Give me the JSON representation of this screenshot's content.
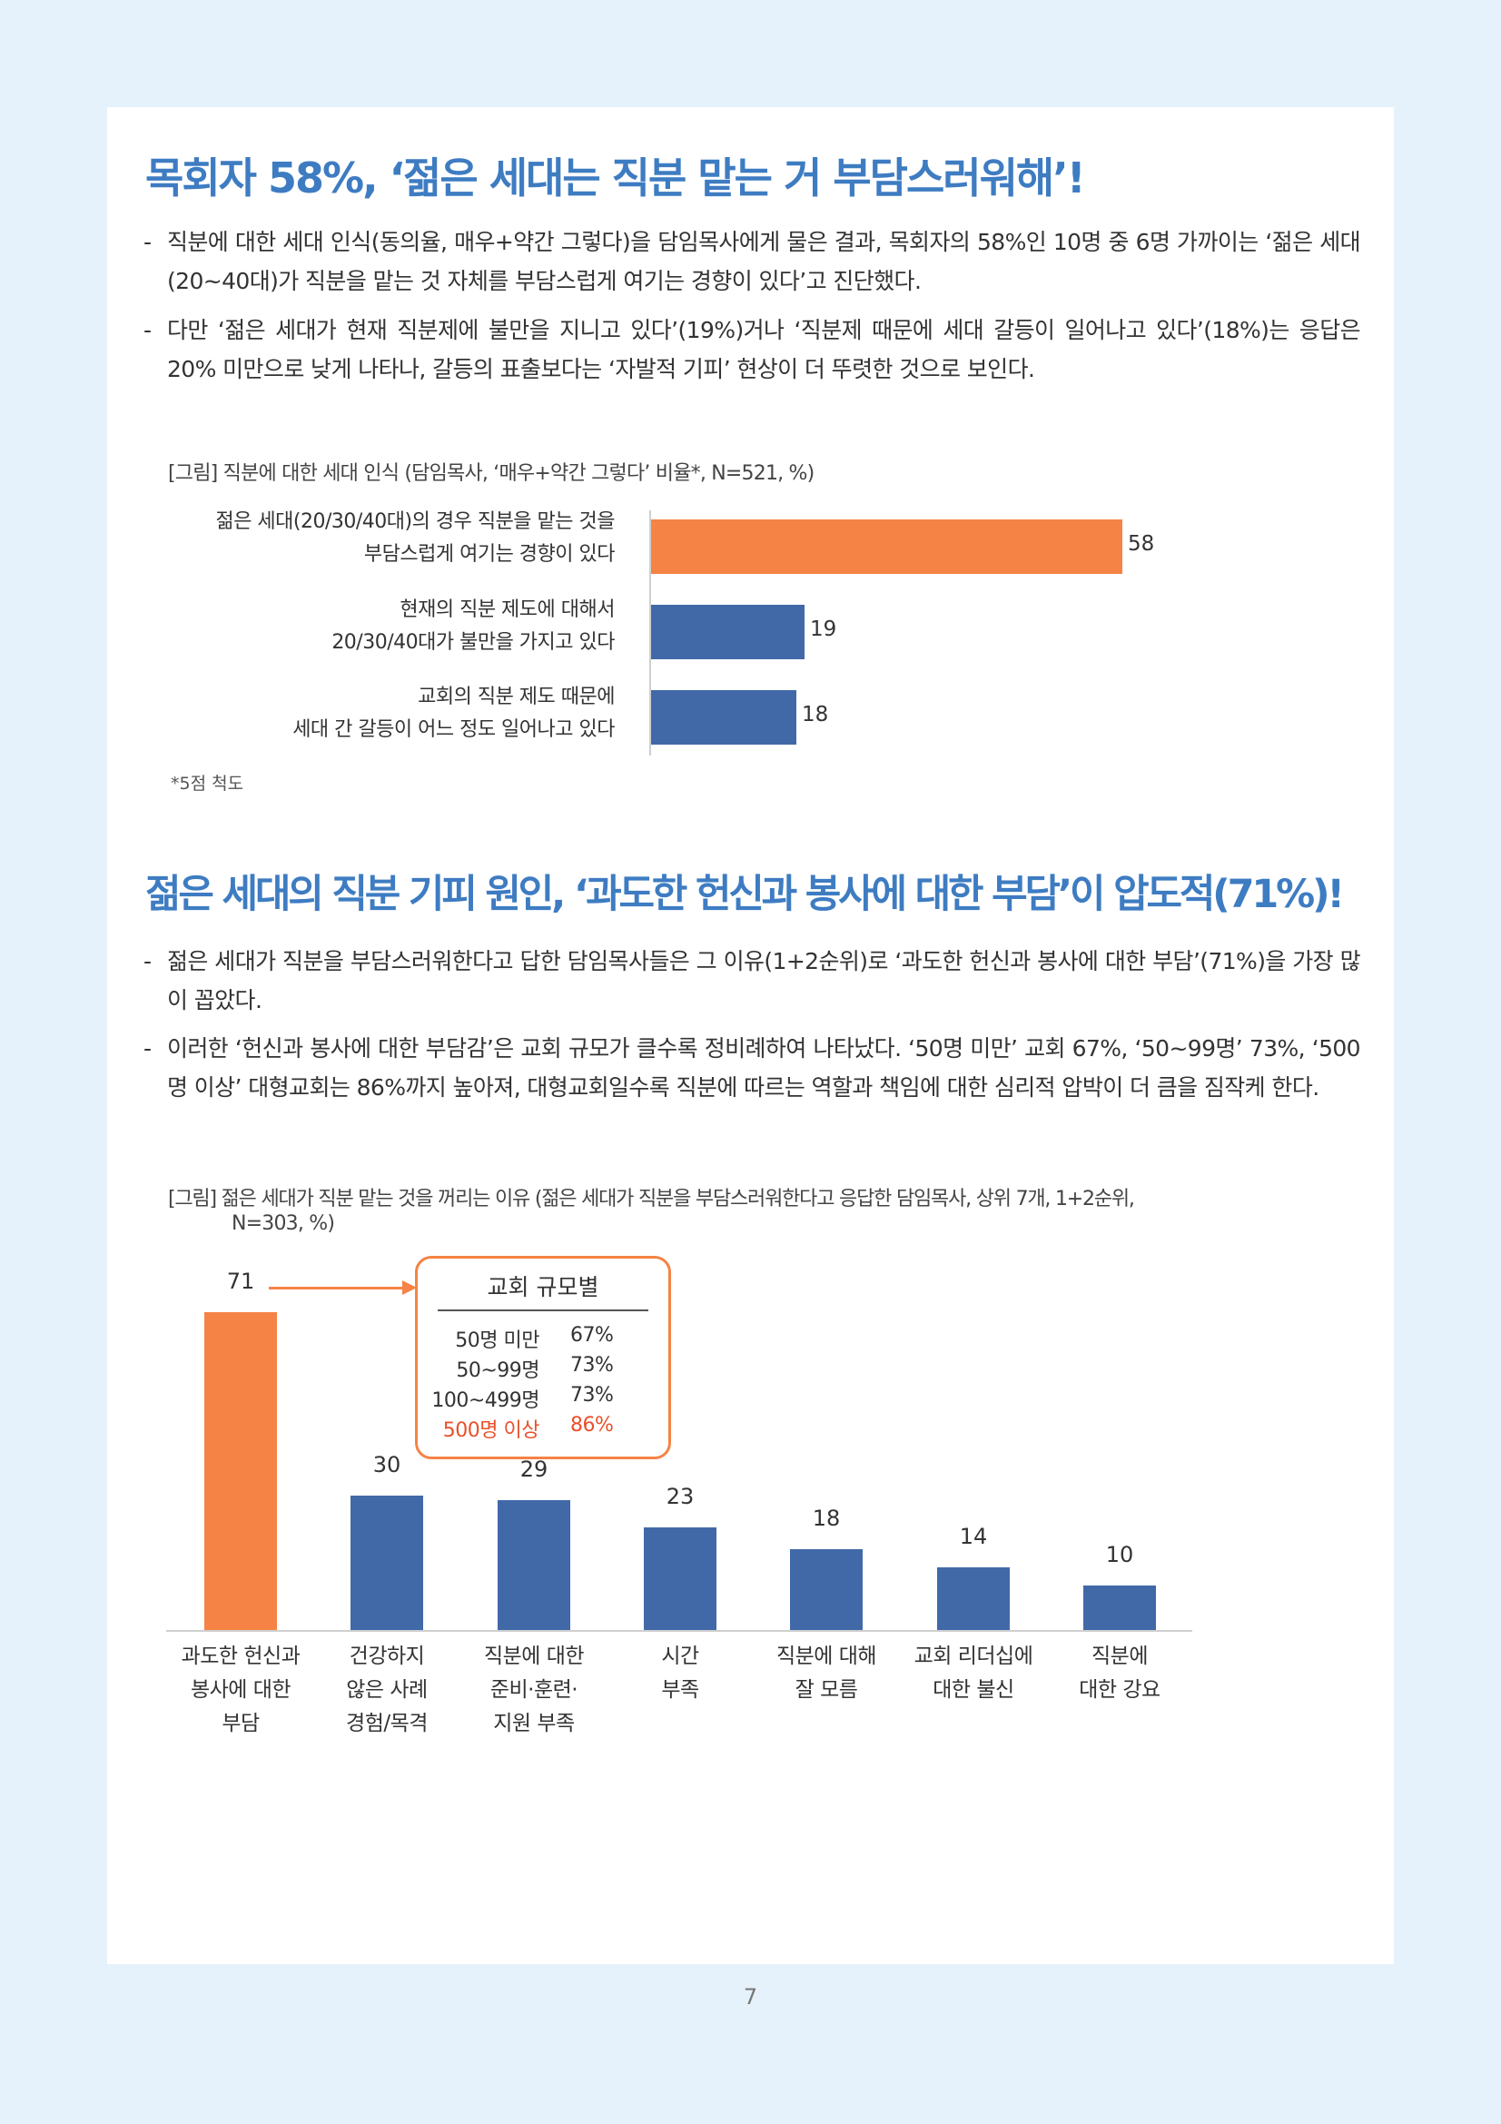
{
  "colors": {
    "accent_orange": "#f58345",
    "bar_blue": "#4169a8",
    "title_blue": "#3e7cc2",
    "highlight_red": "#e8502a",
    "page_bg": "#e5f2fb"
  },
  "section1": {
    "title": "목회자 58%, ‘젊은 세대는 직분 맡는 거 부담스러워해’!",
    "bullets": [
      "직분에 대한 세대 인식(동의율, 매우+약간 그렇다)을 담임목사에게 물은 결과, 목회자의 58%인 10명 중 6명 가까이는 ‘젊은 세대(20~40대)가 직분을 맡는 것 자체를 부담스럽게 여기는 경향이 있다’고 진단했다.",
      "다만 ‘젊은 세대가 현재 직분제에 불만을 지니고 있다’(19%)거나 ‘직분제 때문에 세대 갈등이 일어나고 있다’(18%)는 응답은 20% 미만으로 낮게 나타나, 갈등의 표출보다는 ‘자발적 기피’ 현상이 더 뚜렷한 것으로 보인다."
    ],
    "caption": "[그림] 직분에 대한 세대 인식 (담임목사, ‘매우+약간 그렇다’ 비율*, N=521, %)",
    "note": "*5점 척도"
  },
  "section2": {
    "title": "젊은 세대의 직분 기피 원인, ‘과도한 헌신과 봉사에 대한 부담’이 압도적(71%)!",
    "bullets": [
      "젊은 세대가 직분을 부담스러워한다고 답한 담임목사들은 그 이유(1+2순위)로 ‘과도한 헌신과 봉사에 대한 부담’(71%)을 가장 많이 꼽았다.",
      "이러한 ‘헌신과 봉사에 대한 부담감’은 교회 규모가 클수록 정비례하여 나타났다. ‘50명 미만’ 교회 67%, ‘50~99명’ 73%, ‘500명 이상’ 대형교회는 86%까지 높아져, 대형교회일수록 직분에 따르는 역할과 책임에 대한 심리적 압박이 더 큼을 짐작케 한다."
    ],
    "caption_line1": "[그림] 젊은 세대가 직분 맡는 것을 꺼리는 이유 (젊은 세대가 직분을 부담스러워한다고 응답한 담임목사, 상위 7개, 1+2순위,",
    "caption_line2": "N=303, %)",
    "size_box": {
      "title": "교회 규모별",
      "rows": [
        {
          "label": "50명 미만",
          "value": "67%"
        },
        {
          "label": "50~99명",
          "value": "73%"
        },
        {
          "label": "100~499명",
          "value": "73%"
        },
        {
          "label": "500명 이상",
          "value": "86%"
        }
      ]
    }
  },
  "chart_data": [
    {
      "type": "bar",
      "orientation": "horizontal",
      "title": "[그림] 직분에 대한 세대 인식 (담임목사, ‘매우+약간 그렇다’ 비율*, N=521, %)",
      "categories": [
        [
          "젊은 세대(20/30/40대)의 경우 직분을 맡는 것을",
          "부담스럽게 여기는 경향이 있다"
        ],
        [
          "현재의 직분 제도에 대해서",
          "20/30/40대가 불만을 가지고 있다"
        ],
        [
          "교회의 직분 제도 때문에",
          "세대 간 갈등이 어느 정도 일어나고 있다"
        ]
      ],
      "values": [
        58,
        19,
        18
      ],
      "xlim": [
        0,
        100
      ],
      "grid": false
    },
    {
      "type": "bar",
      "orientation": "vertical",
      "title": "[그림] 젊은 세대가 직분 맡는 것을 꺼리는 이유 (젊은 세대가 직분을 부담스러워한다고 응답한 담임목사, 상위 7개, 1+2순위, N=303, %)",
      "categories": [
        [
          "과도한 헌신과",
          "봉사에 대한",
          "부담"
        ],
        [
          "건강하지",
          "않은 사례",
          "경험/목격"
        ],
        [
          "직분에 대한",
          "준비·훈련·",
          "지원 부족"
        ],
        [
          "시간",
          "부족"
        ],
        [
          "직분에 대해",
          "잘 모름"
        ],
        [
          "교회 리더십에",
          "대한 불신"
        ],
        [
          "직분에",
          "대한 강요"
        ]
      ],
      "values": [
        71,
        30,
        29,
        23,
        18,
        14,
        10
      ],
      "ylim": [
        0,
        100
      ],
      "grid": false
    }
  ],
  "page_number": "7"
}
